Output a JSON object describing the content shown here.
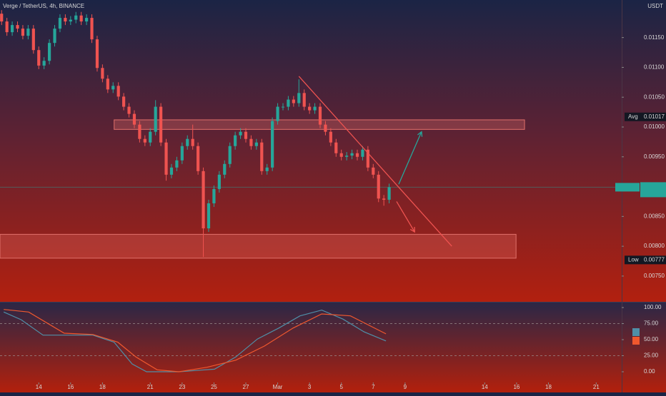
{
  "chart_data": {
    "type": "candlestick",
    "title": "Verge / TetherUS, 4h, BINANCE",
    "unit": "USDT",
    "up_color": "#26a69a",
    "down_color": "#ef5350",
    "x": [
      0,
      1,
      2,
      3,
      4,
      5,
      6,
      7,
      8,
      9,
      10,
      11,
      12,
      13,
      14,
      15,
      16,
      17,
      18,
      19,
      20,
      21,
      22,
      23,
      24,
      25,
      26,
      27,
      28,
      29,
      30,
      31,
      32,
      33,
      34,
      35,
      36,
      37,
      38,
      39,
      40,
      41,
      42,
      43,
      44,
      45,
      46,
      47,
      48,
      49,
      50,
      51,
      52,
      53,
      54,
      55,
      56,
      57,
      58,
      59,
      60,
      61,
      62,
      63,
      64,
      65,
      66,
      67,
      68,
      69,
      70,
      71,
      72,
      73
    ],
    "open": [
      0.0119,
      0.01177,
      0.01159,
      0.01171,
      0.01165,
      0.01153,
      0.01165,
      0.01129,
      0.01103,
      0.01111,
      0.01141,
      0.01165,
      0.01183,
      0.01177,
      0.0118,
      0.01187,
      0.01177,
      0.01183,
      0.01147,
      0.01099,
      0.01081,
      0.01063,
      0.01069,
      0.01051,
      0.01034,
      0.01022,
      0.01004,
      0.0098,
      0.00974,
      0.00992,
      0.01034,
      0.00974,
      0.0092,
      0.00932,
      0.00944,
      0.00968,
      0.0098,
      0.00968,
      0.00926,
      0.0083,
      0.00872,
      0.00896,
      0.0092,
      0.00938,
      0.00968,
      0.00986,
      0.00992,
      0.0098,
      0.00968,
      0.00974,
      0.00926,
      0.00932,
      0.0101,
      0.01034,
      0.01034,
      0.01046,
      0.0104,
      0.01057,
      0.01034,
      0.01028,
      0.01034,
      0.01004,
      0.00992,
      0.00974,
      0.00956,
      0.0095,
      0.00952,
      0.00956,
      0.0095,
      0.00962,
      0.00932,
      0.0092,
      0.0088,
      0.00878
    ],
    "high": [
      0.01196,
      0.01183,
      0.01177,
      0.01177,
      0.01171,
      0.01171,
      0.01171,
      0.01135,
      0.01117,
      0.01147,
      0.01171,
      0.01189,
      0.01189,
      0.01186,
      0.01193,
      0.01193,
      0.01189,
      0.01189,
      0.01153,
      0.01105,
      0.01087,
      0.01075,
      0.01075,
      0.01057,
      0.0104,
      0.01028,
      0.0101,
      0.00986,
      0.00998,
      0.01045,
      0.0104,
      0.0098,
      0.00938,
      0.0095,
      0.00974,
      0.00986,
      0.01004,
      0.00974,
      0.00932,
      0.00878,
      0.00902,
      0.00926,
      0.00944,
      0.00974,
      0.00992,
      0.00998,
      0.00998,
      0.00986,
      0.0098,
      0.0098,
      0.00938,
      0.01016,
      0.0104,
      0.0104,
      0.01052,
      0.01052,
      0.0108,
      0.01063,
      0.0104,
      0.0104,
      0.0104,
      0.0101,
      0.00998,
      0.0098,
      0.00962,
      0.00958,
      0.00962,
      0.00962,
      0.00968,
      0.00968,
      0.00938,
      0.00926,
      0.00886,
      0.00905
    ],
    "low": [
      0.01171,
      0.01153,
      0.01153,
      0.01159,
      0.01147,
      0.01147,
      0.01123,
      0.01097,
      0.01097,
      0.01105,
      0.01135,
      0.01159,
      0.01171,
      0.01171,
      0.01174,
      0.01171,
      0.01171,
      0.01141,
      0.01093,
      0.01075,
      0.01057,
      0.01057,
      0.01045,
      0.01028,
      0.01016,
      0.00998,
      0.00974,
      0.00968,
      0.00968,
      0.00986,
      0.00968,
      0.0091,
      0.00914,
      0.00926,
      0.00938,
      0.00962,
      0.00962,
      0.0092,
      0.00782,
      0.00824,
      0.00866,
      0.0089,
      0.00914,
      0.00932,
      0.00962,
      0.0098,
      0.00974,
      0.00962,
      0.00962,
      0.0092,
      0.0092,
      0.00926,
      0.01004,
      0.01028,
      0.01028,
      0.01034,
      0.01034,
      0.01028,
      0.01022,
      0.01022,
      0.00998,
      0.00986,
      0.00968,
      0.0095,
      0.00944,
      0.00944,
      0.00946,
      0.00944,
      0.00944,
      0.00926,
      0.00914,
      0.00874,
      0.00868,
      0.00872
    ],
    "close": [
      0.01177,
      0.01159,
      0.01171,
      0.01165,
      0.01153,
      0.01165,
      0.01129,
      0.01103,
      0.01111,
      0.01141,
      0.01165,
      0.01183,
      0.01177,
      0.0118,
      0.01187,
      0.01177,
      0.01183,
      0.01147,
      0.01099,
      0.01081,
      0.01063,
      0.01069,
      0.01051,
      0.01034,
      0.01022,
      0.01004,
      0.0098,
      0.00974,
      0.00992,
      0.01034,
      0.00974,
      0.0092,
      0.00932,
      0.00944,
      0.00968,
      0.0098,
      0.00968,
      0.00926,
      0.0083,
      0.00872,
      0.00896,
      0.0092,
      0.00938,
      0.00968,
      0.00986,
      0.00992,
      0.0098,
      0.00968,
      0.00974,
      0.00926,
      0.00932,
      0.0101,
      0.01034,
      0.01034,
      0.01046,
      0.0104,
      0.01057,
      0.01034,
      0.01028,
      0.01034,
      0.01004,
      0.00992,
      0.00974,
      0.00956,
      0.0095,
      0.00952,
      0.00956,
      0.0095,
      0.00962,
      0.00932,
      0.0092,
      0.0088,
      0.00878,
      0.00899
    ],
    "xlim": [
      -0.3,
      116.8
    ],
    "xticks": [
      {
        "value": 7,
        "label": "14"
      },
      {
        "value": 13,
        "label": "16"
      },
      {
        "value": 19,
        "label": "18"
      },
      {
        "value": 28,
        "label": "21"
      },
      {
        "value": 34,
        "label": "23"
      },
      {
        "value": 40,
        "label": "25"
      },
      {
        "value": 46,
        "label": "27"
      },
      {
        "value": 52,
        "label": "Mar"
      },
      {
        "value": 58,
        "label": "3"
      },
      {
        "value": 64,
        "label": "5"
      },
      {
        "value": 70,
        "label": "7"
      },
      {
        "value": 76,
        "label": "9"
      },
      {
        "value": 91,
        "label": "14"
      },
      {
        "value": 97,
        "label": "16"
      },
      {
        "value": 103,
        "label": "18"
      },
      {
        "value": 112,
        "label": "21"
      }
    ],
    "ylim": [
      0.00708,
      0.01213
    ],
    "yticks": [
      {
        "value": 0.0115,
        "label": "0.01150"
      },
      {
        "value": 0.011,
        "label": "0.01100"
      },
      {
        "value": 0.0105,
        "label": "0.01050"
      },
      {
        "value": 0.01,
        "label": "0.01000"
      },
      {
        "value": 0.0095,
        "label": "0.00950"
      },
      {
        "value": 0.0085,
        "label": "0.00850"
      },
      {
        "value": 0.008,
        "label": "0.00800"
      },
      {
        "value": 0.0075,
        "label": "0.00750"
      }
    ],
    "markers": [
      {
        "label": "Avg",
        "value": 0.01017
      },
      {
        "label": "Low",
        "value": 0.00777
      }
    ],
    "zones": [
      {
        "x": [
          21.2,
          98.5
        ],
        "y": [
          0.00996,
          0.01012
        ]
      },
      {
        "x": [
          -0.3,
          96.9
        ],
        "y": [
          0.0078,
          0.0082
        ]
      }
    ],
    "trend_lines": [
      {
        "x": [
          56.0,
          84.8
        ],
        "y": [
          0.01085,
          0.008
        ],
        "color": "#ef5350",
        "arrow": false
      },
      {
        "x": [
          74.8,
          79.1
        ],
        "y": [
          0.00904,
          0.00992
        ],
        "color": "#26a69a",
        "arrow": true
      },
      {
        "x": [
          74.4,
          77.8
        ],
        "y": [
          0.00875,
          0.00824
        ],
        "color": "#ef5350",
        "arrow": true
      }
    ],
    "oscillator": {
      "ylim": [
        -32.2,
        106.7
      ],
      "yticks": [
        {
          "value": 100,
          "label": "100.00"
        },
        {
          "value": 75,
          "label": "75.00"
        },
        {
          "value": 50,
          "label": "50.00"
        },
        {
          "value": 25,
          "label": "25.00"
        },
        {
          "value": 0,
          "label": "0.00"
        }
      ],
      "levels": [
        75,
        25
      ],
      "series": [
        {
          "color": "#4f8fa8",
          "x": [
            0.4,
            3.7,
            7.8,
            13.2,
            17.2,
            21.2,
            24.6,
            27.3,
            33.4,
            36.7,
            40.1,
            44.1,
            48.2,
            52.2,
            56.2,
            60.3,
            64.3,
            68.3,
            72.4
          ],
          "values": [
            93,
            81,
            57,
            57,
            57,
            46,
            12,
            0,
            0,
            2,
            4,
            23,
            51,
            68,
            87,
            96,
            82,
            62,
            48
          ]
        },
        {
          "color": "#f0582e",
          "x": [
            0.4,
            5.1,
            11.8,
            17.2,
            21.9,
            25.3,
            29.3,
            33.4,
            38.7,
            44.1,
            49.5,
            54.9,
            60.3,
            65.7,
            72.4
          ],
          "values": [
            97,
            93,
            60,
            58,
            46,
            23,
            3,
            0,
            7,
            18,
            40,
            68,
            90,
            87,
            59
          ]
        }
      ]
    }
  }
}
